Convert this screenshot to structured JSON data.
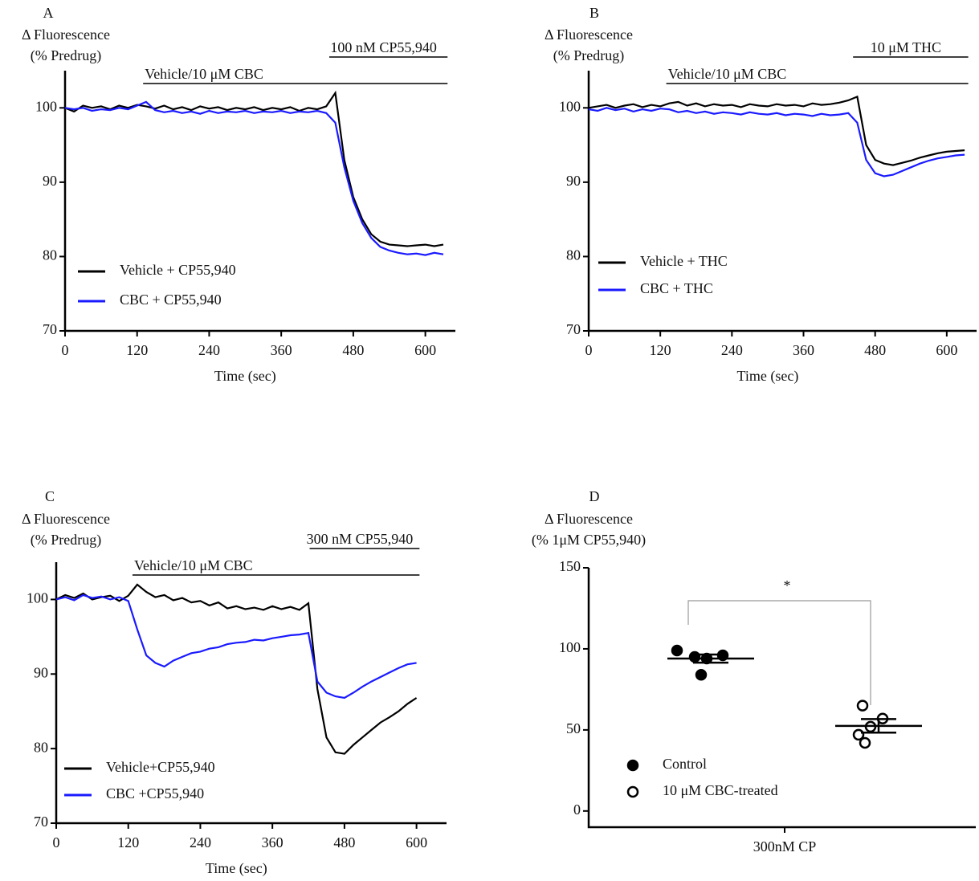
{
  "chart_data": [
    {
      "type": "line",
      "panel": "A",
      "ylabel": [
        "Δ Fluorescence",
        "(% Predrug)"
      ],
      "xlabel": "Time (sec)",
      "xlim": [
        0,
        650
      ],
      "ylim": [
        70,
        105
      ],
      "xticks": [
        0,
        120,
        240,
        360,
        480,
        600
      ],
      "yticks": [
        70,
        80,
        90,
        100
      ],
      "annotations": [
        {
          "text": "Vehicle/10 μM CBC",
          "start": 130,
          "end": 637
        },
        {
          "text": "100 nM CP55,940",
          "start": 440,
          "end": 637
        }
      ],
      "x": [
        0,
        15,
        30,
        45,
        60,
        75,
        90,
        105,
        120,
        135,
        150,
        165,
        180,
        195,
        210,
        225,
        240,
        255,
        270,
        285,
        300,
        315,
        330,
        345,
        360,
        375,
        390,
        405,
        420,
        435,
        450,
        465,
        480,
        495,
        510,
        525,
        540,
        555,
        570,
        585,
        600,
        615,
        630
      ],
      "series": [
        {
          "name": "Vehicle + CP55,940",
          "color": "#000000",
          "values": [
            100,
            99.5,
            100.3,
            100,
            100.2,
            99.8,
            100.3,
            100,
            100.4,
            100.2,
            99.9,
            100.3,
            99.8,
            100.1,
            99.7,
            100.2,
            99.9,
            100.1,
            99.7,
            100,
            99.8,
            100.1,
            99.7,
            100,
            99.8,
            100.1,
            99.6,
            100,
            99.8,
            100.2,
            102,
            93,
            88,
            85,
            83,
            82,
            81.6,
            81.5,
            81.4,
            81.5,
            81.6,
            81.4,
            81.6
          ]
        },
        {
          "name": "CBC + CP55,940",
          "color": "#1a1aff",
          "values": [
            100,
            99.8,
            100,
            99.6,
            99.8,
            99.7,
            100,
            99.8,
            100.3,
            100.8,
            99.7,
            99.4,
            99.6,
            99.3,
            99.5,
            99.2,
            99.6,
            99.3,
            99.5,
            99.4,
            99.6,
            99.3,
            99.5,
            99.4,
            99.6,
            99.3,
            99.5,
            99.4,
            99.6,
            99.3,
            98,
            92,
            87.5,
            84.5,
            82.5,
            81.3,
            80.8,
            80.5,
            80.3,
            80.4,
            80.2,
            80.5,
            80.3
          ]
        }
      ]
    },
    {
      "type": "line",
      "panel": "B",
      "ylabel": [
        "Δ Fluorescence",
        "(% Predrug)"
      ],
      "xlabel": "Time (sec)",
      "xlim": [
        0,
        650
      ],
      "ylim": [
        70,
        105
      ],
      "xticks": [
        0,
        120,
        240,
        360,
        480,
        600
      ],
      "yticks": [
        70,
        80,
        90,
        100
      ],
      "annotations": [
        {
          "text": "Vehicle/10 μM CBC",
          "start": 130,
          "end": 636
        },
        {
          "text": "10 μM THC",
          "start": 443,
          "end": 636
        }
      ],
      "x": [
        0,
        15,
        30,
        45,
        60,
        75,
        90,
        105,
        120,
        135,
        150,
        165,
        180,
        195,
        210,
        225,
        240,
        255,
        270,
        285,
        300,
        315,
        330,
        345,
        360,
        375,
        390,
        405,
        420,
        435,
        450,
        465,
        480,
        495,
        510,
        525,
        540,
        555,
        570,
        585,
        600,
        615,
        630
      ],
      "series": [
        {
          "name": "Vehicle + THC",
          "color": "#000000",
          "values": [
            100,
            100.2,
            100.4,
            100,
            100.3,
            100.5,
            100.1,
            100.4,
            100.2,
            100.6,
            100.8,
            100.3,
            100.6,
            100.2,
            100.5,
            100.3,
            100.4,
            100.1,
            100.5,
            100.3,
            100.2,
            100.5,
            100.3,
            100.4,
            100.2,
            100.6,
            100.4,
            100.5,
            100.7,
            101,
            101.5,
            95,
            93,
            92.5,
            92.3,
            92.6,
            92.9,
            93.3,
            93.6,
            93.9,
            94.1,
            94.2,
            94.3
          ]
        },
        {
          "name": "CBC + THC",
          "color": "#1a1aff",
          "values": [
            99.8,
            99.6,
            100,
            99.7,
            99.9,
            99.5,
            99.8,
            99.6,
            99.9,
            99.8,
            99.4,
            99.6,
            99.3,
            99.5,
            99.2,
            99.4,
            99.3,
            99.1,
            99.4,
            99.2,
            99.1,
            99.3,
            99,
            99.2,
            99.1,
            98.9,
            99.2,
            99,
            99.1,
            99.3,
            98,
            93,
            91.2,
            90.8,
            91,
            91.5,
            92,
            92.5,
            92.9,
            93.2,
            93.4,
            93.6,
            93.7
          ]
        }
      ]
    },
    {
      "type": "line",
      "panel": "C",
      "ylabel": [
        "Δ Fluorescence",
        "(% Predrug)"
      ],
      "xlabel": "Time (sec)",
      "xlim": [
        0,
        650
      ],
      "ylim": [
        70,
        105
      ],
      "xticks": [
        0,
        120,
        240,
        360,
        480,
        600
      ],
      "yticks": [
        70,
        80,
        90,
        100
      ],
      "annotations": [
        {
          "text": "Vehicle/10 μM CBC",
          "start": 127,
          "end": 605
        },
        {
          "text": "300 nM CP55,940",
          "start": 422,
          "end": 605
        }
      ],
      "x": [
        0,
        15,
        30,
        45,
        60,
        75,
        90,
        105,
        120,
        135,
        150,
        165,
        180,
        195,
        210,
        225,
        240,
        255,
        270,
        285,
        300,
        315,
        330,
        345,
        360,
        375,
        390,
        405,
        420,
        435,
        450,
        465,
        480,
        495,
        510,
        525,
        540,
        555,
        570,
        585,
        600
      ],
      "series": [
        {
          "name": "Vehicle+CP55,940",
          "color": "#000000",
          "values": [
            100,
            100.6,
            100.2,
            100.8,
            100,
            100.3,
            100.5,
            99.8,
            100.5,
            102,
            101,
            100.3,
            100.6,
            99.9,
            100.2,
            99.6,
            99.8,
            99.2,
            99.6,
            98.8,
            99.1,
            98.7,
            98.9,
            98.6,
            99.1,
            98.7,
            99,
            98.6,
            99.5,
            88,
            81.5,
            79.5,
            79.3,
            80.5,
            81.5,
            82.5,
            83.5,
            84.2,
            85,
            86,
            86.8
          ]
        },
        {
          "name": "CBC +CP55,940",
          "color": "#1a1aff",
          "values": [
            100,
            100.3,
            99.9,
            100.6,
            100.2,
            100.4,
            100,
            100.3,
            99.8,
            96,
            92.5,
            91.5,
            91,
            91.8,
            92.3,
            92.8,
            93,
            93.4,
            93.6,
            94,
            94.2,
            94.3,
            94.6,
            94.5,
            94.8,
            95,
            95.2,
            95.3,
            95.5,
            89,
            87.5,
            87,
            86.8,
            87.5,
            88.3,
            89,
            89.6,
            90.2,
            90.8,
            91.3,
            91.5
          ]
        }
      ]
    },
    {
      "type": "strip",
      "panel": "D",
      "ylabel": [
        "Δ Fluorescence",
        "(% 1μM CP55,940)"
      ],
      "categories": [
        "300nM CP"
      ],
      "ylim": [
        -10,
        150
      ],
      "yticks": [
        0,
        50,
        100,
        150
      ],
      "significance": "*",
      "series": [
        {
          "name": "Control",
          "color": "#000000",
          "marker": "filled",
          "values": [
            99,
            95,
            94,
            96,
            84
          ],
          "mean": 94,
          "sem": 2.5
        },
        {
          "name": "10 μM CBC-treated",
          "color": "#000000",
          "marker": "open",
          "values": [
            65,
            57,
            52,
            47,
            42
          ],
          "mean": 52.5,
          "sem": 4.2
        }
      ]
    }
  ]
}
